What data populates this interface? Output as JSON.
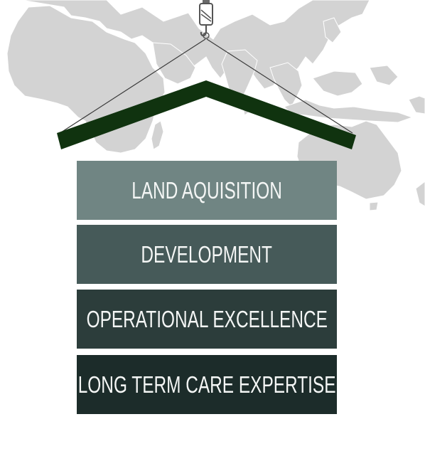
{
  "colors": {
    "map_land": "#d3d3d3",
    "roof": "#10330f",
    "cable": "#3a3a3a",
    "hook": "#555555"
  },
  "icons": [
    "crane-hook-icon",
    "world-map-background"
  ],
  "blocks": [
    {
      "label": "LAND AQUISITION",
      "color": "#708583"
    },
    {
      "label": "DEVELOPMENT",
      "color": "#465a59"
    },
    {
      "label": "OPERATIONAL EXCELLENCE",
      "color": "#2c3d3b"
    },
    {
      "label": "LONG TERM CARE EXPERTISE",
      "color": "#1c2c2a"
    }
  ]
}
